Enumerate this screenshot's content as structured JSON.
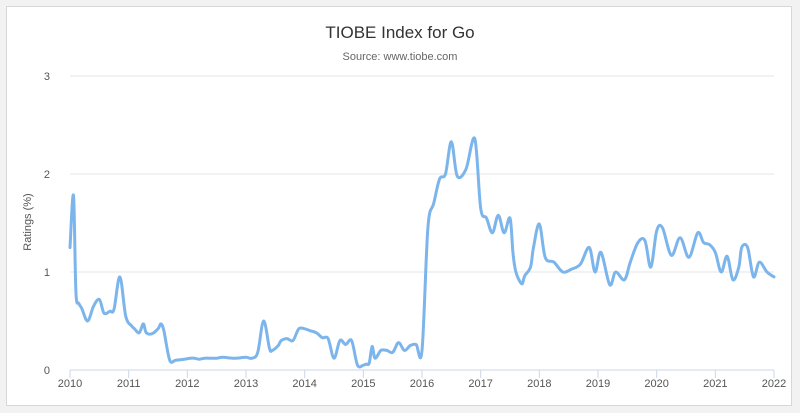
{
  "chart_data": {
    "type": "line",
    "title": "TIOBE Index for Go",
    "subtitle": "Source: www.tiobe.com",
    "ylabel": "Ratings (%)",
    "xlabel": "",
    "xlim": [
      2010.0,
      2022.0
    ],
    "ylim": [
      0,
      3
    ],
    "x_ticks": [
      "2010",
      "2011",
      "2012",
      "2013",
      "2014",
      "2015",
      "2016",
      "2017",
      "2018",
      "2019",
      "2020",
      "2021",
      "2022"
    ],
    "y_ticks": [
      "0",
      "1",
      "2",
      "3"
    ],
    "grid": true,
    "legend": "none",
    "colors": {
      "line": "#7cb5ec",
      "grid": "#e6e6e6",
      "axis": "#ccd6eb"
    },
    "series": [
      {
        "x": [
          2010.0,
          2010.06,
          2010.1,
          2010.15,
          2010.2,
          2010.3,
          2010.4,
          2010.5,
          2010.58,
          2010.68,
          2010.75,
          2010.85,
          2010.95,
          2011.05,
          2011.1,
          2011.18,
          2011.25,
          2011.3,
          2011.4,
          2011.5,
          2011.55,
          2011.6,
          2011.7,
          2011.8,
          2011.95,
          2012.05,
          2012.12,
          2012.2,
          2012.3,
          2012.5,
          2012.6,
          2012.8,
          2013.0,
          2013.1,
          2013.2,
          2013.3,
          2013.4,
          2013.45,
          2013.55,
          2013.6,
          2013.7,
          2013.8,
          2013.9,
          2014.0,
          2014.1,
          2014.2,
          2014.3,
          2014.4,
          2014.5,
          2014.6,
          2014.7,
          2014.8,
          2014.9,
          2015.0,
          2015.05,
          2015.1,
          2015.15,
          2015.2,
          2015.3,
          2015.4,
          2015.5,
          2015.6,
          2015.7,
          2015.8,
          2015.9,
          2016.0,
          2016.1,
          2016.2,
          2016.3,
          2016.4,
          2016.5,
          2016.6,
          2016.75,
          2016.9,
          2017.0,
          2017.1,
          2017.2,
          2017.3,
          2017.4,
          2017.5,
          2017.55,
          2017.6,
          2017.7,
          2017.75,
          2017.85,
          2017.9,
          2018.0,
          2018.1,
          2018.25,
          2018.4,
          2018.55,
          2018.7,
          2018.85,
          2018.95,
          2019.05,
          2019.2,
          2019.3,
          2019.45,
          2019.55,
          2019.68,
          2019.8,
          2019.9,
          2020.0,
          2020.1,
          2020.25,
          2020.4,
          2020.55,
          2020.7,
          2020.8,
          2020.9,
          2021.0,
          2021.1,
          2021.2,
          2021.3,
          2021.4,
          2021.45,
          2021.55,
          2021.65,
          2021.75,
          2021.88,
          2022.0
        ],
        "y": [
          1.25,
          1.78,
          0.8,
          0.68,
          0.63,
          0.5,
          0.65,
          0.72,
          0.58,
          0.6,
          0.62,
          0.95,
          0.55,
          0.45,
          0.42,
          0.38,
          0.47,
          0.38,
          0.37,
          0.42,
          0.47,
          0.4,
          0.1,
          0.1,
          0.11,
          0.12,
          0.12,
          0.11,
          0.12,
          0.12,
          0.13,
          0.12,
          0.13,
          0.12,
          0.18,
          0.5,
          0.22,
          0.2,
          0.25,
          0.3,
          0.32,
          0.3,
          0.42,
          0.42,
          0.4,
          0.38,
          0.33,
          0.32,
          0.12,
          0.3,
          0.26,
          0.3,
          0.05,
          0.05,
          0.06,
          0.07,
          0.24,
          0.12,
          0.2,
          0.2,
          0.18,
          0.28,
          0.2,
          0.25,
          0.26,
          0.2,
          1.45,
          1.7,
          1.95,
          2.0,
          2.33,
          1.98,
          2.05,
          2.36,
          1.65,
          1.55,
          1.4,
          1.58,
          1.4,
          1.55,
          1.2,
          1.0,
          0.88,
          0.96,
          1.05,
          1.25,
          1.49,
          1.15,
          1.1,
          1.0,
          1.03,
          1.08,
          1.25,
          1.0,
          1.2,
          0.87,
          1.0,
          0.92,
          1.1,
          1.3,
          1.32,
          1.05,
          1.42,
          1.45,
          1.17,
          1.35,
          1.15,
          1.4,
          1.3,
          1.28,
          1.2,
          1.0,
          1.16,
          0.92,
          1.05,
          1.25,
          1.25,
          0.95,
          1.1,
          1.0,
          0.95
        ]
      }
    ]
  }
}
